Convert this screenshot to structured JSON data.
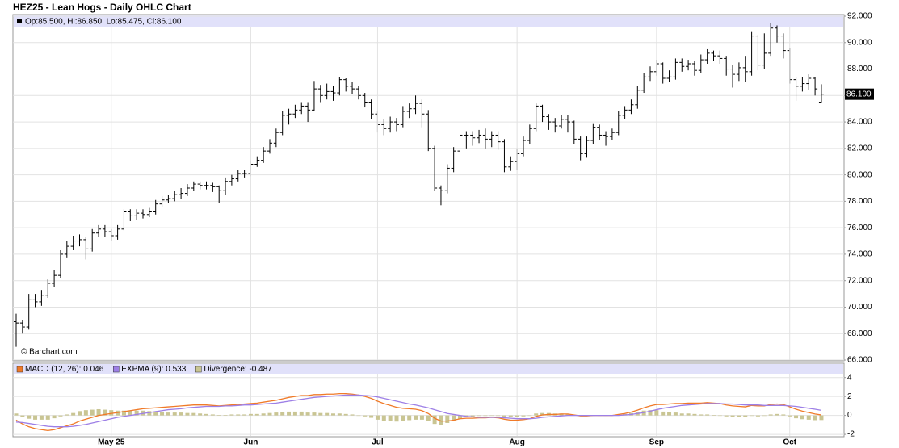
{
  "chart_data": [
    {
      "type": "ohlc",
      "title": "HEZ25 - Lean Hogs - Daily OHLC Chart",
      "header": "Op:85.500, Hi:86.850, Lo:85.475, Cl:86.100",
      "watermark": "© Barchart.com",
      "color": "#000000",
      "open": [
        68.9,
        68.8,
        68.5,
        70.6,
        70.4,
        70.9,
        71.8,
        72.4,
        74.0,
        74.6,
        75.0,
        75.1,
        74.4,
        75.6,
        75.9,
        75.7,
        75.4,
        75.9,
        77.2,
        76.9,
        77.1,
        77.0,
        77.2,
        77.8,
        78.1,
        78.2,
        78.5,
        78.6,
        79.0,
        79.3,
        79.2,
        79.2,
        79.1,
        78.8,
        79.5,
        79.7,
        80.1,
        80.1,
        80.8,
        81.1,
        81.8,
        82.4,
        83.2,
        84.5,
        84.6,
        84.9,
        85.2,
        84.9,
        86.5,
        86.0,
        86.3,
        86.2,
        87.2,
        86.7,
        86.5,
        86.0,
        85.5,
        84.6,
        83.8,
        83.5,
        84.0,
        83.8,
        84.8,
        85.0,
        85.4,
        84.6,
        82.0,
        79.0,
        78.8,
        80.5,
        81.8,
        83.0,
        83.0,
        82.8,
        83.0,
        82.7,
        83.0,
        82.5,
        80.6,
        81.0,
        81.6,
        82.6,
        83.5,
        85.2,
        84.4,
        84.0,
        83.7,
        84.2,
        84.0,
        82.7,
        81.6,
        82.6,
        83.6,
        83.0,
        82.9,
        83.2,
        84.5,
        84.9,
        85.3,
        86.4,
        87.4,
        87.8,
        88.4,
        87.3,
        87.4,
        88.5,
        88.2,
        88.4,
        87.9,
        88.7,
        89.2,
        89.0,
        88.8,
        88.0,
        87.6,
        88.1,
        87.8,
        90.5,
        88.3,
        89.2,
        91.1,
        90.5,
        89.4,
        87.2,
        86.7,
        86.9,
        87.3,
        85.5
      ],
      "high": [
        69.5,
        69.0,
        71.0,
        71.0,
        71.3,
        72.1,
        72.8,
        74.3,
        75.0,
        75.4,
        75.5,
        75.3,
        75.9,
        76.2,
        76.2,
        75.9,
        76.2,
        77.4,
        77.4,
        77.4,
        77.4,
        77.5,
        78.1,
        78.4,
        78.5,
        78.8,
        79.0,
        79.3,
        79.5,
        79.5,
        79.5,
        79.4,
        79.2,
        79.8,
        80.0,
        80.4,
        80.4,
        81.1,
        81.4,
        82.1,
        82.7,
        83.5,
        84.8,
        85.0,
        85.3,
        85.5,
        85.5,
        87.1,
        86.8,
        86.9,
        86.7,
        87.4,
        87.3,
        87.0,
        86.7,
        86.2,
        85.7,
        84.8,
        84.2,
        84.4,
        84.3,
        85.2,
        85.4,
        86.0,
        85.7,
        84.9,
        82.2,
        79.2,
        80.8,
        82.1,
        83.3,
        83.3,
        83.3,
        83.4,
        83.5,
        83.3,
        83.3,
        82.7,
        81.4,
        82.0,
        82.9,
        83.8,
        85.4,
        85.3,
        84.6,
        84.3,
        84.5,
        84.5,
        84.1,
        82.9,
        82.9,
        83.9,
        83.8,
        83.3,
        83.5,
        84.8,
        85.2,
        85.7,
        86.7,
        87.7,
        88.2,
        88.7,
        88.5,
        87.9,
        88.8,
        88.8,
        88.7,
        88.6,
        89.1,
        89.5,
        89.4,
        89.4,
        89.0,
        88.3,
        88.5,
        89.0,
        90.8,
        90.6,
        90.7,
        91.5,
        91.3,
        90.7,
        89.6,
        87.4,
        87.4,
        87.6,
        87.4,
        86.85
      ],
      "low": [
        67.0,
        68.0,
        68.3,
        70.0,
        70.1,
        70.7,
        71.5,
        72.2,
        73.7,
        74.3,
        74.6,
        73.6,
        74.2,
        75.3,
        75.3,
        75.0,
        75.1,
        75.8,
        76.5,
        76.6,
        76.7,
        76.8,
        77.0,
        77.6,
        77.9,
        78.0,
        78.2,
        78.4,
        78.8,
        78.9,
        78.9,
        78.7,
        77.9,
        78.5,
        79.2,
        79.5,
        79.8,
        79.9,
        80.6,
        80.9,
        81.6,
        82.1,
        83.0,
        83.8,
        84.3,
        84.6,
        84.0,
        84.8,
        85.5,
        85.7,
        85.6,
        86.0,
        86.3,
        86.1,
        85.7,
        85.1,
        84.2,
        83.2,
        83.0,
        83.2,
        83.3,
        83.6,
        84.3,
        84.6,
        83.6,
        81.8,
        78.8,
        77.7,
        78.6,
        80.2,
        81.5,
        82.0,
        82.2,
        82.4,
        82.0,
        82.1,
        81.9,
        80.2,
        80.3,
        80.4,
        81.4,
        82.3,
        83.3,
        84.0,
        83.4,
        83.2,
        83.5,
        83.2,
        82.3,
        81.1,
        81.3,
        82.3,
        82.6,
        82.2,
        82.6,
        83.0,
        84.2,
        84.6,
        85.0,
        86.2,
        87.1,
        87.5,
        86.9,
        87.0,
        87.2,
        87.8,
        87.9,
        87.5,
        87.7,
        88.4,
        88.6,
        88.4,
        87.5,
        86.6,
        87.1,
        87.0,
        87.5,
        87.9,
        88.0,
        89.0,
        90.0,
        88.8,
        86.9,
        85.6,
        86.3,
        86.4,
        86.0,
        85.475
      ],
      "close": [
        68.8,
        68.5,
        70.6,
        70.4,
        70.9,
        71.8,
        72.4,
        74.0,
        74.6,
        75.0,
        75.1,
        74.4,
        75.6,
        75.9,
        75.7,
        75.4,
        75.9,
        77.2,
        76.9,
        77.1,
        77.0,
        77.2,
        77.8,
        78.1,
        78.2,
        78.5,
        78.6,
        79.0,
        79.3,
        79.2,
        79.2,
        79.1,
        78.8,
        79.5,
        79.7,
        80.1,
        80.1,
        80.8,
        81.1,
        81.8,
        82.4,
        83.2,
        84.5,
        84.6,
        84.9,
        85.2,
        84.9,
        86.5,
        86.0,
        86.3,
        86.2,
        87.2,
        86.7,
        86.5,
        86.0,
        85.5,
        84.6,
        83.8,
        83.5,
        84.0,
        83.8,
        84.8,
        85.0,
        85.4,
        84.6,
        82.0,
        79.0,
        78.8,
        80.5,
        81.8,
        83.0,
        83.0,
        82.8,
        83.0,
        82.7,
        83.0,
        82.5,
        80.6,
        81.0,
        81.6,
        82.6,
        83.5,
        85.2,
        84.4,
        84.0,
        83.7,
        84.2,
        84.0,
        82.7,
        81.6,
        82.6,
        83.6,
        83.0,
        82.9,
        83.2,
        84.5,
        84.9,
        85.3,
        86.4,
        87.4,
        87.8,
        88.4,
        87.3,
        87.4,
        88.5,
        88.2,
        88.4,
        87.9,
        88.7,
        89.2,
        89.0,
        88.8,
        88.0,
        87.6,
        88.1,
        87.8,
        90.5,
        88.3,
        89.2,
        91.1,
        90.5,
        89.4,
        87.2,
        86.7,
        86.9,
        87.3,
        86.5,
        86.1
      ],
      "last_label": {
        "value": 86.1,
        "label": "86.100"
      },
      "ylim": [
        66,
        92
      ],
      "yticks": [
        {
          "value": 66,
          "label": "66.000"
        },
        {
          "value": 68,
          "label": "68.000"
        },
        {
          "value": 70,
          "label": "70.000"
        },
        {
          "value": 72,
          "label": "72.000"
        },
        {
          "value": 74,
          "label": "74.000"
        },
        {
          "value": 76,
          "label": "76.000"
        },
        {
          "value": 78,
          "label": "78.000"
        },
        {
          "value": 80,
          "label": "80.000"
        },
        {
          "value": 82,
          "label": "82.000"
        },
        {
          "value": 84,
          "label": "84.000"
        },
        {
          "value": 86,
          "label": "86.000"
        },
        {
          "value": 88,
          "label": "88.000"
        },
        {
          "value": 90,
          "label": "90.000"
        },
        {
          "value": 92,
          "label": "92.000"
        }
      ],
      "grid": true
    },
    {
      "type": "macd",
      "categories": [
        null,
        null,
        null,
        null,
        null,
        null,
        null,
        null,
        null,
        null,
        null,
        null,
        null,
        null,
        null,
        "May 25",
        null,
        null,
        null,
        null,
        null,
        null,
        null,
        null,
        null,
        null,
        null,
        null,
        null,
        null,
        null,
        null,
        null,
        null,
        null,
        null,
        null,
        "Jun",
        null,
        null,
        null,
        null,
        null,
        null,
        null,
        null,
        null,
        null,
        null,
        null,
        null,
        null,
        null,
        null,
        null,
        null,
        null,
        "Jul",
        null,
        null,
        null,
        null,
        null,
        null,
        null,
        null,
        null,
        null,
        null,
        null,
        null,
        null,
        null,
        null,
        null,
        null,
        null,
        null,
        null,
        "Aug",
        null,
        null,
        null,
        null,
        null,
        null,
        null,
        null,
        null,
        null,
        null,
        null,
        null,
        null,
        null,
        null,
        null,
        null,
        null,
        null,
        null,
        "Sep",
        null,
        null,
        null,
        null,
        null,
        null,
        null,
        null,
        null,
        null,
        null,
        null,
        null,
        null,
        null,
        null,
        null,
        null,
        null,
        null,
        "Oct",
        null,
        null,
        null,
        null,
        null
      ],
      "series": [
        {
          "name": "MACD (12, 26): 0.046",
          "color": "#f07a28",
          "type": "line",
          "values": [
            -0.5,
            -0.9,
            -1.2,
            -1.4,
            -1.5,
            -1.6,
            -1.5,
            -1.3,
            -1.1,
            -0.9,
            -0.6,
            -0.4,
            -0.2,
            0.0,
            0.1,
            0.2,
            0.3,
            0.4,
            0.5,
            0.6,
            0.7,
            0.75,
            0.8,
            0.85,
            0.9,
            0.95,
            1.0,
            1.05,
            1.1,
            1.1,
            1.1,
            1.05,
            1.0,
            1.05,
            1.1,
            1.15,
            1.2,
            1.25,
            1.3,
            1.4,
            1.5,
            1.6,
            1.75,
            1.9,
            2.0,
            2.1,
            2.1,
            2.2,
            2.2,
            2.25,
            2.25,
            2.3,
            2.3,
            2.25,
            2.15,
            2.0,
            1.8,
            1.5,
            1.25,
            1.05,
            0.85,
            0.75,
            0.7,
            0.65,
            0.5,
            0.2,
            -0.3,
            -0.6,
            -0.6,
            -0.5,
            -0.35,
            -0.3,
            -0.3,
            -0.25,
            -0.25,
            -0.2,
            -0.25,
            -0.4,
            -0.5,
            -0.5,
            -0.45,
            -0.35,
            -0.1,
            0.05,
            0.1,
            0.1,
            0.15,
            0.15,
            0.05,
            -0.05,
            -0.05,
            0.0,
            0.0,
            0.0,
            0.0,
            0.1,
            0.2,
            0.35,
            0.55,
            0.8,
            1.0,
            1.15,
            1.15,
            1.2,
            1.25,
            1.25,
            1.3,
            1.3,
            1.3,
            1.35,
            1.3,
            1.25,
            1.1,
            1.0,
            0.95,
            0.9,
            1.05,
            1.0,
            1.0,
            1.15,
            1.2,
            1.15,
            0.9,
            0.65,
            0.45,
            0.3,
            0.15,
            0.046
          ]
        },
        {
          "name": "EXPMA (9): 0.533",
          "color": "#9d7fe6",
          "type": "line",
          "values": [
            -0.7,
            -0.75,
            -0.85,
            -0.95,
            -1.05,
            -1.15,
            -1.2,
            -1.2,
            -1.2,
            -1.15,
            -1.05,
            -0.95,
            -0.8,
            -0.65,
            -0.5,
            -0.35,
            -0.2,
            -0.1,
            0.0,
            0.1,
            0.2,
            0.3,
            0.4,
            0.5,
            0.6,
            0.65,
            0.7,
            0.8,
            0.85,
            0.9,
            0.95,
            0.95,
            0.95,
            1.0,
            1.0,
            1.05,
            1.1,
            1.1,
            1.15,
            1.2,
            1.25,
            1.3,
            1.4,
            1.5,
            1.6,
            1.7,
            1.8,
            1.9,
            1.95,
            2.0,
            2.05,
            2.1,
            2.15,
            2.15,
            2.15,
            2.1,
            2.05,
            1.95,
            1.8,
            1.65,
            1.5,
            1.35,
            1.2,
            1.1,
            0.95,
            0.8,
            0.6,
            0.4,
            0.2,
            0.1,
            0.0,
            -0.1,
            -0.15,
            -0.2,
            -0.2,
            -0.2,
            -0.2,
            -0.25,
            -0.3,
            -0.35,
            -0.35,
            -0.35,
            -0.3,
            -0.2,
            -0.15,
            -0.1,
            -0.05,
            0.0,
            0.0,
            0.0,
            0.0,
            0.0,
            0.0,
            0.0,
            0.0,
            0.0,
            0.05,
            0.1,
            0.2,
            0.3,
            0.45,
            0.6,
            0.75,
            0.85,
            0.95,
            1.05,
            1.1,
            1.15,
            1.2,
            1.25,
            1.25,
            1.25,
            1.2,
            1.2,
            1.15,
            1.1,
            1.1,
            1.1,
            1.05,
            1.05,
            1.05,
            1.05,
            1.0,
            0.95,
            0.85,
            0.75,
            0.65,
            0.533
          ]
        },
        {
          "name": "Divergence: -0.487",
          "color": "#c9c593",
          "type": "bar",
          "values": [
            0.2,
            -0.15,
            -0.35,
            -0.45,
            -0.45,
            -0.45,
            -0.3,
            -0.1,
            0.1,
            0.25,
            0.45,
            0.55,
            0.6,
            0.65,
            0.6,
            0.55,
            0.5,
            0.5,
            0.5,
            0.5,
            0.5,
            0.45,
            0.4,
            0.35,
            0.3,
            0.3,
            0.3,
            0.25,
            0.25,
            0.2,
            0.15,
            0.1,
            0.05,
            0.05,
            0.1,
            0.1,
            0.1,
            0.15,
            0.15,
            0.2,
            0.25,
            0.3,
            0.35,
            0.4,
            0.4,
            0.4,
            0.3,
            0.3,
            0.25,
            0.25,
            0.2,
            0.2,
            0.15,
            0.1,
            0.0,
            -0.1,
            -0.25,
            -0.45,
            -0.55,
            -0.6,
            -0.65,
            -0.6,
            -0.5,
            -0.45,
            -0.45,
            -0.6,
            -0.9,
            -1.0,
            -0.8,
            -0.6,
            -0.35,
            -0.2,
            -0.15,
            -0.05,
            -0.05,
            0.0,
            -0.05,
            -0.15,
            -0.2,
            -0.15,
            -0.1,
            0.0,
            0.2,
            0.25,
            0.25,
            0.2,
            0.2,
            0.15,
            0.05,
            -0.05,
            -0.05,
            0.0,
            0.0,
            0.0,
            0.0,
            0.1,
            0.15,
            0.25,
            0.35,
            0.5,
            0.55,
            0.55,
            0.4,
            0.35,
            0.3,
            0.2,
            0.2,
            0.15,
            0.1,
            0.1,
            0.05,
            0.0,
            -0.1,
            -0.2,
            -0.2,
            -0.2,
            -0.05,
            -0.1,
            -0.05,
            0.1,
            0.15,
            0.1,
            -0.1,
            -0.3,
            -0.4,
            -0.45,
            -0.5,
            -0.487
          ]
        }
      ],
      "ylim": [
        -2.25,
        4.4
      ],
      "yticks": [
        4,
        2,
        0,
        -2
      ],
      "grid": true
    }
  ]
}
